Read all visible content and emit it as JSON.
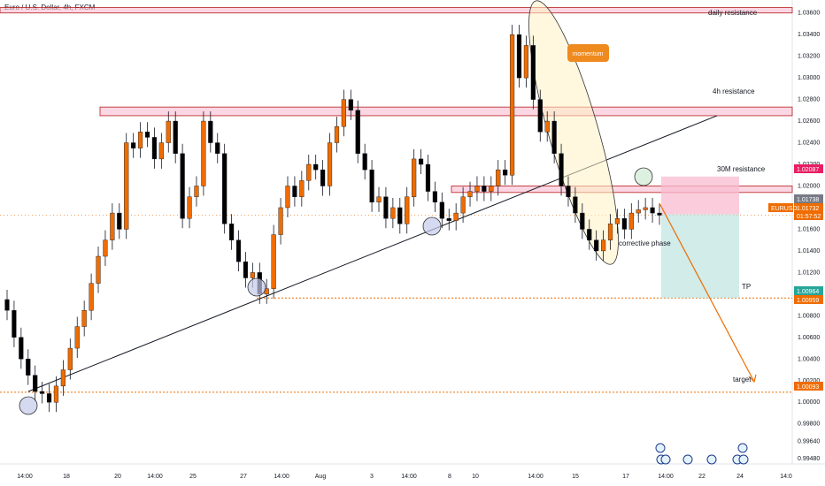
{
  "header": {
    "title": "Euro / U.S. Dollar, 4h, FXCM"
  },
  "chart_data": {
    "type": "candlestick",
    "symbol": "EURUSD",
    "title": "Euro / U.S. Dollar, 4h, FXCM",
    "y_ticks": [
      "1.03600",
      "1.03400",
      "1.03200",
      "1.03000",
      "1.02800",
      "1.02600",
      "1.02400",
      "1.02200",
      "1.02000",
      "1.01800",
      "1.01600",
      "1.01400",
      "1.01200",
      "1.01000",
      "1.00800",
      "1.00600",
      "1.00400",
      "1.00200",
      "1.00000",
      "0.99800",
      "0.99640",
      "0.99480"
    ],
    "x_ticks": [
      "14:00",
      "18",
      "20",
      "14:00",
      "25",
      "27",
      "14:00",
      "Aug",
      "3",
      "14:00",
      "8",
      "10",
      "14:00",
      "15",
      "17",
      "14:00",
      "22",
      "24",
      "14:0"
    ],
    "ylim": [
      0.9943,
      1.0372
    ],
    "series": [
      {
        "close": [
          1.0085,
          1.006,
          1.004,
          1.0025,
          1.001,
          1.0008,
          1.0,
          1.0015,
          1.003,
          1.005,
          1.007,
          1.0085,
          1.011,
          1.0135,
          1.015,
          1.0175,
          1.016,
          1.024,
          1.0235,
          1.025,
          1.0245,
          1.0225,
          1.024,
          1.026,
          1.023,
          1.017,
          1.019,
          1.02,
          1.026,
          1.024,
          1.023,
          1.0165,
          1.015,
          1.013,
          1.0115,
          1.012,
          1.01,
          1.0105,
          1.0155,
          1.018,
          1.02,
          1.019,
          1.0205,
          1.022,
          1.0215,
          1.02,
          1.024,
          1.0255,
          1.028,
          1.027,
          1.023,
          1.0215,
          1.0185,
          1.019,
          1.017,
          1.018,
          1.0165,
          1.019,
          1.0225,
          1.022,
          1.0195,
          1.0185,
          1.017,
          1.0168,
          1.0175,
          1.019,
          1.0195,
          1.02,
          1.0195,
          1.02,
          1.0215,
          1.021,
          1.034,
          1.03,
          1.033,
          1.028,
          1.025,
          1.026,
          1.023,
          1.02,
          1.019,
          1.0175,
          1.016,
          1.015,
          1.014,
          1.015,
          1.0165,
          1.017,
          1.016,
          1.0175,
          1.0178,
          1.018,
          1.0175,
          1.0173
        ]
      }
    ],
    "tags": [
      {
        "label": "1.02087",
        "color": "#e91e63"
      },
      {
        "label": "1.01738",
        "color": "#787b86"
      },
      {
        "label": "1.01732",
        "color": "#ef6c00"
      },
      {
        "label": "01:57:52",
        "color": "#ef6c00"
      },
      {
        "label": "EURUSD",
        "color": "#ef6c00"
      },
      {
        "label": "1.00964",
        "color": "#26a69a"
      },
      {
        "label": "1.00959",
        "color": "#ef6c00"
      },
      {
        "label": "1.00093",
        "color": "#ef6c00"
      }
    ],
    "annotations": {
      "daily_resistance": "daily resistance",
      "h4_resistance": "4h resistance",
      "m30_resistance": "30M resistance",
      "momentum": "momentum",
      "corrective_phase": "corrective phase",
      "tp": "TP",
      "target": "target"
    },
    "colors": {
      "up": "#ef6c00",
      "down": "#000000",
      "zone": "#f8bbd0",
      "tp_fill": "#b2dfdb",
      "sl_fill": "#f8bbd0",
      "momentum": "#fff3c4"
    }
  }
}
